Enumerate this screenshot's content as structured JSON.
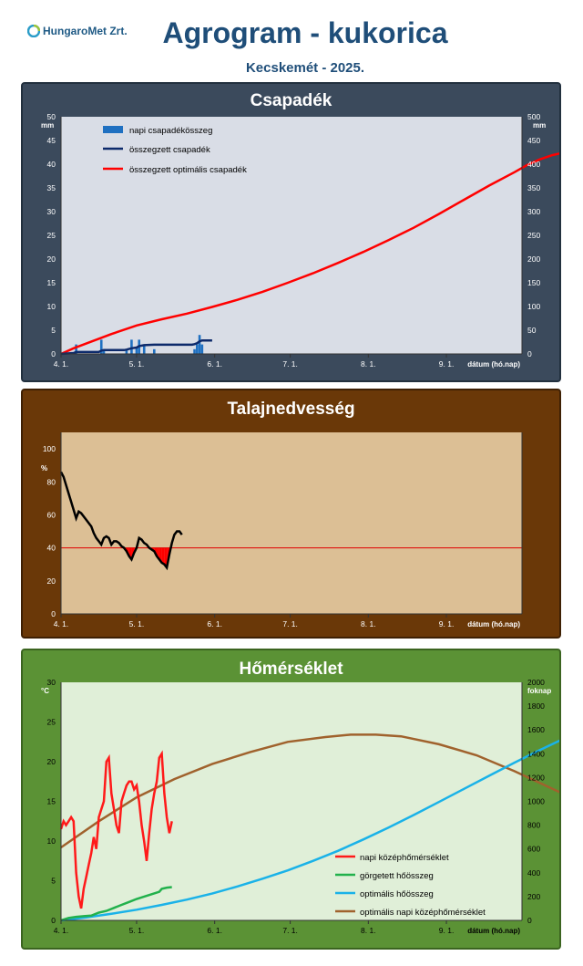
{
  "header": {
    "logo_text": "HungaroMet Zrt.",
    "title": "Agrogram - kukorica",
    "subtitle": "Kecskemét - 2025."
  },
  "x_tick_labels": [
    "4. 1.",
    "5. 1.",
    "6. 1.",
    "7. 1.",
    "8. 1.",
    "9. 1."
  ],
  "x_axis_label": "dátum (hó.nap)",
  "chart_data": [
    {
      "type": "line",
      "title": "Csapadék",
      "y_unit_left": "mm",
      "y_unit_right": "mm",
      "ylim_left": [
        0,
        50
      ],
      "ylim_right": [
        0,
        500
      ],
      "yticks_left": [
        0,
        5,
        10,
        15,
        20,
        25,
        30,
        35,
        40,
        45,
        50
      ],
      "yticks_right": [
        0,
        50,
        100,
        150,
        200,
        250,
        300,
        350,
        400,
        450,
        500
      ],
      "xlim_days": [
        0,
        183
      ],
      "legend_position": "top-left",
      "colors": {
        "bar": "#1f70c1",
        "cumulative": "#0d2a6b",
        "optimal": "#ff0000",
        "plot_bg": "#d9dde6"
      },
      "series": [
        {
          "name": "napi csapadékösszeg",
          "kind": "bar",
          "axis": "left",
          "points": [
            [
              6,
              2
            ],
            [
              16,
              3
            ],
            [
              17,
              1
            ],
            [
              26,
              1
            ],
            [
              28,
              3
            ],
            [
              30,
              1.5
            ],
            [
              31,
              3
            ],
            [
              33,
              2
            ],
            [
              37,
              1
            ],
            [
              53,
              1
            ],
            [
              54,
              2
            ],
            [
              55,
              4
            ],
            [
              56,
              2
            ]
          ]
        },
        {
          "name": "összegzett csapadék",
          "kind": "line",
          "axis": "right",
          "points": [
            [
              0,
              0
            ],
            [
              5,
              2
            ],
            [
              6,
              4
            ],
            [
              15,
              4
            ],
            [
              16,
              7
            ],
            [
              17,
              8
            ],
            [
              25,
              8
            ],
            [
              26,
              9
            ],
            [
              28,
              12
            ],
            [
              30,
              13.5
            ],
            [
              31,
              16.5
            ],
            [
              33,
              18.5
            ],
            [
              37,
              19.5
            ],
            [
              52,
              19.5
            ],
            [
              53,
              20.5
            ],
            [
              54,
              22.5
            ],
            [
              55,
              26.5
            ],
            [
              56,
              28.5
            ],
            [
              60,
              28.5
            ]
          ]
        },
        {
          "name": "összegzett optimális csapadék",
          "kind": "line",
          "axis": "right",
          "points": [
            [
              0,
              0
            ],
            [
              5,
              12
            ],
            [
              10,
              22
            ],
            [
              20,
              42
            ],
            [
              30,
              60
            ],
            [
              40,
              73
            ],
            [
              50,
              85
            ],
            [
              60,
              99
            ],
            [
              70,
              114
            ],
            [
              80,
              131
            ],
            [
              90,
              150
            ],
            [
              100,
              170
            ],
            [
              110,
              192
            ],
            [
              120,
              215
            ],
            [
              130,
              240
            ],
            [
              140,
              266
            ],
            [
              150,
              295
            ],
            [
              160,
              325
            ],
            [
              170,
              355
            ],
            [
              180,
              383
            ],
            [
              185,
              398
            ],
            [
              190,
              410
            ],
            [
              195,
              419
            ],
            [
              200,
              425
            ],
            [
              205,
              429
            ],
            [
              210,
              431
            ],
            [
              215,
              431
            ],
            [
              219,
              429
            ]
          ]
        }
      ]
    },
    {
      "type": "line",
      "title": "Talajnedvesség",
      "y_unit_left": "%",
      "ylim_left": [
        0,
        110
      ],
      "yticks_left": [
        0,
        20,
        40,
        60,
        80,
        100
      ],
      "xlim_days": [
        0,
        183
      ],
      "threshold": 40,
      "colors": {
        "soil": "#000000",
        "threshold": "#e00000",
        "deficit_fill": "#ff0000",
        "plot_bg": "#dcbf95"
      },
      "series": [
        {
          "name": "talajnedvesség",
          "kind": "line",
          "points": [
            [
              0,
              86
            ],
            [
              1,
              83
            ],
            [
              3,
              73
            ],
            [
              4,
              68
            ],
            [
              6,
              58
            ],
            [
              7,
              62
            ],
            [
              8,
              61
            ],
            [
              10,
              57
            ],
            [
              12,
              53
            ],
            [
              13,
              49
            ],
            [
              14,
              46
            ],
            [
              15,
              44
            ],
            [
              16,
              42
            ],
            [
              17,
              46
            ],
            [
              18,
              47
            ],
            [
              19,
              46
            ],
            [
              20,
              42
            ],
            [
              21,
              44
            ],
            [
              22,
              44
            ],
            [
              23,
              43
            ],
            [
              24,
              41
            ],
            [
              25,
              40
            ],
            [
              26,
              38
            ],
            [
              27,
              35
            ],
            [
              28,
              33
            ],
            [
              29,
              37
            ],
            [
              30,
              40
            ],
            [
              31,
              46
            ],
            [
              32,
              45
            ],
            [
              33,
              43
            ],
            [
              34,
              42
            ],
            [
              35,
              40
            ],
            [
              36,
              39
            ],
            [
              37,
              38
            ],
            [
              38,
              35
            ],
            [
              39,
              33
            ],
            [
              40,
              31
            ],
            [
              41,
              30
            ],
            [
              42,
              28
            ],
            [
              43,
              36
            ],
            [
              44,
              43
            ],
            [
              45,
              48
            ],
            [
              46,
              50
            ],
            [
              47,
              50
            ],
            [
              48,
              48
            ]
          ]
        }
      ]
    },
    {
      "type": "line",
      "title": "Hőmérséklet",
      "y_unit_left": "°C",
      "y_unit_right": "foknap",
      "ylim_left": [
        0,
        30
      ],
      "ylim_right": [
        0,
        2000
      ],
      "yticks_left": [
        0,
        5,
        10,
        15,
        20,
        25,
        30
      ],
      "yticks_right": [
        0,
        200,
        400,
        600,
        800,
        1000,
        1200,
        1400,
        1600,
        1800,
        2000
      ],
      "xlim_days": [
        0,
        183
      ],
      "legend_position": "bottom-right",
      "colors": {
        "daily_mean": "#ff1a1a",
        "rolling_sum": "#22b14c",
        "optimal_sum": "#1ab2e8",
        "optimal_daily": "#a0622d",
        "plot_bg": "#e0efd8"
      },
      "series": [
        {
          "name": "napi középhőmérséklet",
          "kind": "line",
          "axis": "left",
          "points": [
            [
              0,
              11.5
            ],
            [
              1,
              12.5
            ],
            [
              2,
              12
            ],
            [
              3,
              12.5
            ],
            [
              4,
              13
            ],
            [
              5,
              12.5
            ],
            [
              6,
              6
            ],
            [
              7,
              3
            ],
            [
              8,
              1.5
            ],
            [
              9,
              4
            ],
            [
              10,
              5.5
            ],
            [
              11,
              7
            ],
            [
              12,
              8.5
            ],
            [
              13,
              10.5
            ],
            [
              14,
              9
            ],
            [
              15,
              13
            ],
            [
              16,
              14
            ],
            [
              17,
              15
            ],
            [
              18,
              20
            ],
            [
              19,
              20.5
            ],
            [
              20,
              16
            ],
            [
              21,
              14
            ],
            [
              22,
              12
            ],
            [
              23,
              11
            ],
            [
              24,
              15
            ],
            [
              25,
              16
            ],
            [
              26,
              17
            ],
            [
              27,
              17.5
            ],
            [
              28,
              17.5
            ],
            [
              29,
              16.5
            ],
            [
              30,
              17
            ],
            [
              31,
              15
            ],
            [
              32,
              12
            ],
            [
              33,
              10
            ],
            [
              34,
              7.5
            ],
            [
              35,
              11
            ],
            [
              36,
              14
            ],
            [
              37,
              16
            ],
            [
              38,
              17.5
            ],
            [
              39,
              20.5
            ],
            [
              40,
              21
            ],
            [
              41,
              16
            ],
            [
              42,
              13
            ],
            [
              43,
              11
            ],
            [
              44,
              12.5
            ]
          ]
        },
        {
          "name": "görgetett hőösszeg",
          "kind": "line",
          "axis": "right",
          "points": [
            [
              0,
              0
            ],
            [
              3,
              20
            ],
            [
              6,
              30
            ],
            [
              9,
              35
            ],
            [
              12,
              40
            ],
            [
              15,
              65
            ],
            [
              18,
              80
            ],
            [
              21,
              105
            ],
            [
              24,
              130
            ],
            [
              27,
              155
            ],
            [
              30,
              180
            ],
            [
              33,
              200
            ],
            [
              36,
              220
            ],
            [
              39,
              240
            ],
            [
              40,
              265
            ],
            [
              42,
              275
            ],
            [
              44,
              280
            ]
          ]
        },
        {
          "name": "optimális hőösszeg",
          "kind": "line",
          "axis": "right",
          "points": [
            [
              0,
              0
            ],
            [
              10,
              25
            ],
            [
              20,
              55
            ],
            [
              30,
              90
            ],
            [
              40,
              130
            ],
            [
              50,
              175
            ],
            [
              60,
              225
            ],
            [
              70,
              285
            ],
            [
              80,
              350
            ],
            [
              90,
              420
            ],
            [
              100,
              500
            ],
            [
              110,
              585
            ],
            [
              120,
              680
            ],
            [
              130,
              780
            ],
            [
              140,
              885
            ],
            [
              150,
              995
            ],
            [
              160,
              1105
            ],
            [
              170,
              1215
            ],
            [
              180,
              1325
            ],
            [
              190,
              1430
            ],
            [
              200,
              1530
            ],
            [
              210,
              1620
            ],
            [
              220,
              1700
            ],
            [
              230,
              1760
            ],
            [
              240,
              1790
            ]
          ]
        },
        {
          "name": "optimális napi középhőmérséklet",
          "kind": "line",
          "axis": "left",
          "points": [
            [
              0,
              9.2
            ],
            [
              15,
              12.5
            ],
            [
              30,
              15.5
            ],
            [
              45,
              17.8
            ],
            [
              60,
              19.7
            ],
            [
              75,
              21.2
            ],
            [
              90,
              22.5
            ],
            [
              105,
              23.1
            ],
            [
              115,
              23.4
            ],
            [
              125,
              23.4
            ],
            [
              135,
              23.2
            ],
            [
              150,
              22.2
            ],
            [
              165,
              20.8
            ],
            [
              180,
              18.8
            ],
            [
              195,
              16.6
            ],
            [
              210,
              14.4
            ],
            [
              220,
              13.3
            ]
          ]
        }
      ]
    }
  ]
}
